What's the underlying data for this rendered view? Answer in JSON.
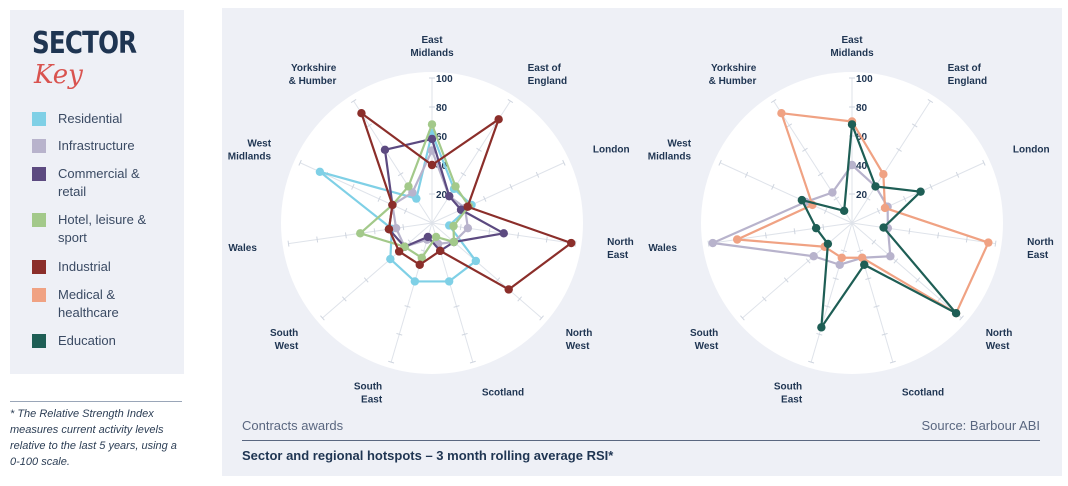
{
  "key": {
    "title": "SECTOR",
    "subtitle": "Key",
    "items": [
      {
        "label": "Residential",
        "color": "#7fd0e6"
      },
      {
        "label": "Infrastructure",
        "color": "#b8b3cc"
      },
      {
        "label": "Commercial & retail",
        "color": "#5c4a80"
      },
      {
        "label": "Hotel, leisure & sport",
        "color": "#a3c98a"
      },
      {
        "label": "Industrial",
        "color": "#8b2e2a"
      },
      {
        "label": "Medical & healthcare",
        "color": "#f0a283"
      },
      {
        "label": "Education",
        "color": "#1e5e55"
      }
    ]
  },
  "footnote": "* The Relative Strength Index measures current activity levels relative to the last 5 years, using a 0-100 scale.",
  "caption": {
    "left": "Contracts awards",
    "right": "Source: Barbour ABI",
    "title": "Sector and regional hotspots – 3 month rolling average RSI*"
  },
  "chart_data": [
    {
      "type": "radar",
      "axes": [
        "East Midlands",
        "East of England",
        "London",
        "North East",
        "North West",
        "Scotland",
        "South East",
        "South West",
        "Wales",
        "West Midlands",
        "Yorkshire & Humber"
      ],
      "rlim": [
        0,
        100
      ],
      "ticks": [
        "20",
        "40",
        "60",
        "80",
        "100"
      ],
      "series": [
        {
          "name": "Residential",
          "color": "#7fd0e6",
          "values": [
            62,
            28,
            30,
            12,
            40,
            42,
            42,
            38,
            28,
            85,
            20
          ]
        },
        {
          "name": "Infrastructure",
          "color": "#b8b3cc",
          "values": [
            50,
            22,
            25,
            25,
            20,
            15,
            12,
            25,
            25,
            30,
            25
          ]
        },
        {
          "name": "Commercial & retail",
          "color": "#5c4a80",
          "values": [
            58,
            22,
            22,
            50,
            20,
            20,
            10,
            25,
            30,
            30,
            60
          ]
        },
        {
          "name": "Hotel, leisure & sport",
          "color": "#a3c98a",
          "values": [
            68,
            30,
            28,
            15,
            20,
            10,
            25,
            25,
            50,
            30,
            30
          ]
        },
        {
          "name": "Industrial",
          "color": "#8b2e2a",
          "values": [
            40,
            85,
            27,
            97,
            70,
            20,
            30,
            30,
            30,
            30,
            90
          ]
        }
      ]
    },
    {
      "type": "radar",
      "axes": [
        "East Midlands",
        "East of England",
        "London",
        "North East",
        "North West",
        "Scotland",
        "South East",
        "South West",
        "Wales",
        "West Midlands",
        "Yorkshire & Humber"
      ],
      "rlim": [
        0,
        100
      ],
      "ticks": [
        "20",
        "40",
        "60",
        "80",
        "100"
      ],
      "series": [
        {
          "name": "Infrastructure",
          "color": "#b8b3cc",
          "values": [
            40,
            30,
            27,
            25,
            35,
            25,
            30,
            35,
            97,
            35,
            25
          ]
        },
        {
          "name": "Medical & healthcare",
          "color": "#f0a283",
          "values": [
            70,
            40,
            25,
            95,
            95,
            25,
            25,
            25,
            80,
            30,
            90
          ]
        },
        {
          "name": "Education",
          "color": "#1e5e55",
          "values": [
            68,
            30,
            52,
            22,
            95,
            30,
            75,
            22,
            25,
            38,
            10
          ]
        }
      ]
    }
  ]
}
